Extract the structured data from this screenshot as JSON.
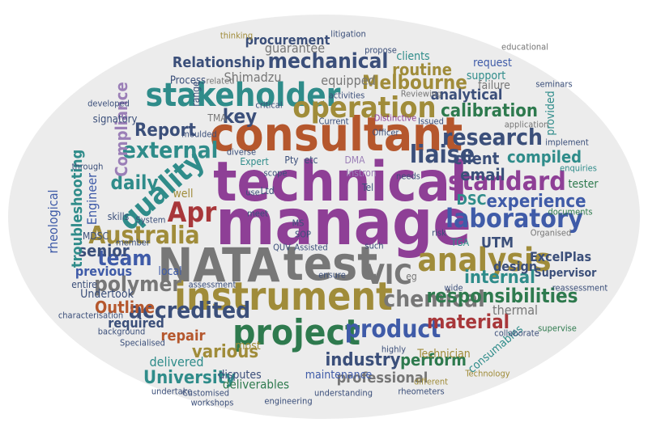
{
  "palette": {
    "purple": "#8e3f96",
    "brown": "#b5572d",
    "olive": "#a08c3a",
    "teal": "#2f8c8a",
    "blue": "#3f5ba8",
    "green": "#2e7a4e",
    "gray": "#6a6a6a",
    "red": "#a8373a",
    "navy": "#3b4f7a",
    "lilac": "#9b7fb7"
  },
  "words": [
    {
      "text": "technical",
      "color": "#8e3f96"
    },
    {
      "text": "manage",
      "color": "#8e3f96"
    },
    {
      "text": "consultant",
      "color": "#b5572d"
    },
    {
      "text": "NATA",
      "color": "#777777"
    },
    {
      "text": "test",
      "color": "#777777"
    },
    {
      "text": "instrument",
      "color": "#a08c3a"
    },
    {
      "text": "project",
      "color": "#2e7a4e"
    },
    {
      "text": "analysis",
      "color": "#a08c3a"
    },
    {
      "text": "stakeholder",
      "color": "#2f8c8a"
    },
    {
      "text": "operation",
      "color": "#a08c3a"
    },
    {
      "text": "quality",
      "color": "#2f8c8a"
    },
    {
      "text": "Apr",
      "color": "#a8373a"
    },
    {
      "text": "laboratory",
      "color": "#3f5ba8"
    },
    {
      "text": "standard",
      "color": "#8e3f96"
    },
    {
      "text": "research",
      "color": "#3b4f7a"
    },
    {
      "text": "product",
      "color": "#3f5ba8"
    },
    {
      "text": "Australia",
      "color": "#a08c3a"
    },
    {
      "text": "mechanical",
      "color": "#3b4f7a"
    },
    {
      "text": "liaise",
      "color": "#3b4f7a"
    },
    {
      "text": "chemical",
      "color": "#777777"
    },
    {
      "text": "external",
      "color": "#2f8c8a"
    },
    {
      "text": "accredited",
      "color": "#3b4f7a"
    },
    {
      "text": "VIC",
      "color": "#777777"
    },
    {
      "text": "polymer",
      "color": "#777777"
    },
    {
      "text": "responsibilities",
      "color": "#2e7a4e"
    },
    {
      "text": "experience",
      "color": "#3f5ba8"
    },
    {
      "text": "team",
      "color": "#3f5ba8"
    },
    {
      "text": "Melbourne",
      "color": "#a08c3a"
    },
    {
      "text": "calibration",
      "color": "#2e7a4e"
    },
    {
      "text": "internal",
      "color": "#2f8c8a"
    },
    {
      "text": "material",
      "color": "#a8373a"
    },
    {
      "text": "various",
      "color": "#a08c3a"
    },
    {
      "text": "Report",
      "color": "#3b4f7a"
    },
    {
      "text": "Outline",
      "color": "#b5572d"
    },
    {
      "text": "University",
      "color": "#2f8c8a"
    },
    {
      "text": "industry",
      "color": "#3b4f7a"
    },
    {
      "text": "daily",
      "color": "#2f8c8a"
    },
    {
      "text": "senior",
      "color": "#3b4f7a"
    },
    {
      "text": "perform",
      "color": "#2e7a4e"
    },
    {
      "text": "professional",
      "color": "#777777"
    },
    {
      "text": "key",
      "color": "#3b4f7a"
    },
    {
      "text": "Relationship",
      "color": "#3b4f7a"
    },
    {
      "text": "procurement",
      "color": "#3b4f7a"
    },
    {
      "text": "analytical",
      "color": "#3b4f7a"
    },
    {
      "text": "routine",
      "color": "#a08c3a"
    },
    {
      "text": "email",
      "color": "#3b4f7a"
    },
    {
      "text": "client",
      "color": "#3b4f7a"
    },
    {
      "text": "compiled",
      "color": "#2f8c8a"
    },
    {
      "text": "UTM",
      "color": "#3b4f7a"
    },
    {
      "text": "DSC",
      "color": "#2f8c8a"
    },
    {
      "text": "Compliance",
      "color": "#9b7fb7"
    },
    {
      "text": "troubleshooting",
      "color": "#2f8c8a"
    },
    {
      "text": "rheological",
      "color": "#3f5ba8"
    },
    {
      "text": "Engineer",
      "color": "#3f5ba8"
    },
    {
      "text": "repair",
      "color": "#b5572d"
    },
    {
      "text": "equipped",
      "color": "#777777"
    },
    {
      "text": "Shimadzu",
      "color": "#777777"
    },
    {
      "text": "guarantee",
      "color": "#777777"
    },
    {
      "text": "previous",
      "color": "#3f5ba8"
    },
    {
      "text": "required",
      "color": "#3b4f7a"
    },
    {
      "text": "delivered",
      "color": "#2f8c8a"
    },
    {
      "text": "Undertook",
      "color": "#3b4f7a"
    },
    {
      "text": "design",
      "color": "#3b4f7a"
    },
    {
      "text": "ExcelPlas",
      "color": "#3b4f7a"
    },
    {
      "text": "Technician",
      "color": "#a08c3a"
    },
    {
      "text": "maintenance",
      "color": "#3f5ba8"
    },
    {
      "text": "deliverables",
      "color": "#2e7a4e"
    },
    {
      "text": "thermal",
      "color": "#777777"
    },
    {
      "text": "Supervisor",
      "color": "#3b4f7a"
    },
    {
      "text": "consumables",
      "color": "#2f8c8a"
    },
    {
      "text": "disputes",
      "color": "#3b4f7a"
    },
    {
      "text": "most",
      "color": "#a08c3a"
    },
    {
      "text": "clients",
      "color": "#2f8c8a"
    },
    {
      "text": "support",
      "color": "#2f8c8a"
    },
    {
      "text": "request",
      "color": "#3f5ba8"
    },
    {
      "text": "failure",
      "color": "#777777"
    },
    {
      "text": "provided",
      "color": "#2f8c8a"
    },
    {
      "text": "tester",
      "color": "#2e7a4e"
    },
    {
      "text": "local",
      "color": "#3f5ba8"
    },
    {
      "text": "well",
      "color": "#a08c3a"
    },
    {
      "text": "MDSC",
      "color": "#3b4f7a"
    },
    {
      "text": "signatory",
      "color": "#3b4f7a"
    },
    {
      "text": "Process",
      "color": "#3b4f7a"
    },
    {
      "text": "range",
      "color": "#3b4f7a"
    },
    {
      "text": "entire",
      "color": "#3b4f7a"
    },
    {
      "text": "skills",
      "color": "#3b4f7a"
    },
    {
      "text": "Ltd",
      "color": "#3b4f7a"
    },
    {
      "text": "Pty",
      "color": "#3b4f7a"
    },
    {
      "text": "etc",
      "color": "#3b4f7a"
    },
    {
      "text": "Expert",
      "color": "#2f8c8a"
    },
    {
      "text": "Instron",
      "color": "#9b7fb7"
    },
    {
      "text": "DMA",
      "color": "#9b7fb7"
    },
    {
      "text": "TMA",
      "color": "#777777"
    },
    {
      "text": "Tel",
      "color": "#3b4f7a"
    },
    {
      "text": "TGA",
      "color": "#2f8c8a"
    },
    {
      "text": "eg",
      "color": "#777777"
    },
    {
      "text": "seminars",
      "color": "#3b4f7a"
    },
    {
      "text": "educational",
      "color": "#777777"
    },
    {
      "text": "application",
      "color": "#777777"
    },
    {
      "text": "implement",
      "color": "#3b4f7a"
    },
    {
      "text": "enquiries",
      "color": "#2f8c8a"
    },
    {
      "text": "documents",
      "color": "#2e7a4e"
    },
    {
      "text": "Organised",
      "color": "#777777"
    },
    {
      "text": "characterisation",
      "color": "#3b4f7a"
    },
    {
      "text": "background",
      "color": "#3b4f7a"
    },
    {
      "text": "Specialised",
      "color": "#3b4f7a"
    },
    {
      "text": "undertake",
      "color": "#3b4f7a"
    },
    {
      "text": "workshops",
      "color": "#3b4f7a"
    },
    {
      "text": "engineering",
      "color": "#3b4f7a"
    },
    {
      "text": "understanding",
      "color": "#3b4f7a"
    },
    {
      "text": "rheometers",
      "color": "#3b4f7a"
    },
    {
      "text": "different",
      "color": "#a08c3a"
    },
    {
      "text": "highly",
      "color": "#3b4f7a"
    },
    {
      "text": "Technology",
      "color": "#a08c3a"
    },
    {
      "text": "collaborate",
      "color": "#3b4f7a"
    },
    {
      "text": "supervise",
      "color": "#2e7a4e"
    },
    {
      "text": "wide",
      "color": "#3b4f7a"
    },
    {
      "text": "reassessment",
      "color": "#3b4f7a"
    },
    {
      "text": "moulded",
      "color": "#3b4f7a"
    },
    {
      "text": "developed",
      "color": "#3b4f7a"
    },
    {
      "text": "related",
      "color": "#777777"
    },
    {
      "text": "thinking",
      "color": "#a08c3a"
    },
    {
      "text": "litigation",
      "color": "#3b4f7a"
    },
    {
      "text": "propose",
      "color": "#3b4f7a"
    },
    {
      "text": "activities",
      "color": "#3b4f7a"
    },
    {
      "text": "Reviewing",
      "color": "#777777"
    },
    {
      "text": "Distinctive",
      "color": "#8e3f96"
    },
    {
      "text": "Current",
      "color": "#3b4f7a"
    },
    {
      "text": "critical",
      "color": "#3b4f7a"
    },
    {
      "text": "diverse",
      "color": "#3b4f7a"
    },
    {
      "text": "scope",
      "color": "#3b4f7a"
    },
    {
      "text": "needs",
      "color": "#3b4f7a"
    },
    {
      "text": "through",
      "color": "#3b4f7a"
    },
    {
      "text": "System",
      "color": "#3b4f7a"
    },
    {
      "text": "Customised",
      "color": "#3b4f7a"
    },
    {
      "text": "assessment",
      "color": "#3b4f7a"
    },
    {
      "text": "meet",
      "color": "#3b4f7a"
    },
    {
      "text": "use",
      "color": "#3b4f7a"
    },
    {
      "text": "ensure",
      "color": "#3b4f7a"
    },
    {
      "text": "such",
      "color": "#3b4f7a"
    },
    {
      "text": "risk",
      "color": "#3b4f7a"
    },
    {
      "text": "QUV",
      "color": "#3b4f7a"
    },
    {
      "text": "Assisted",
      "color": "#3b4f7a"
    },
    {
      "text": "SOP",
      "color": "#3b4f7a"
    },
    {
      "text": "MS",
      "color": "#3b4f7a"
    },
    {
      "text": "member",
      "color": "#3b4f7a"
    },
    {
      "text": "Issued",
      "color": "#3b4f7a"
    },
    {
      "text": "Officer",
      "color": "#3b4f7a"
    }
  ]
}
